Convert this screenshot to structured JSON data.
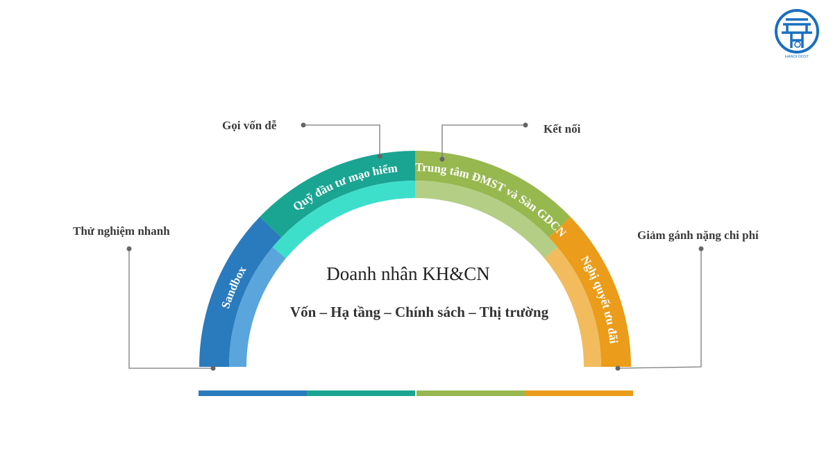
{
  "title": "Doanh nhân KH&CN",
  "subtitle": "Vốn – Hạ tầng – Chính sách – Thị trường",
  "segments": [
    {
      "label": "Sandbox",
      "dark": "#2a7bbd",
      "light": "#5aa5dc"
    },
    {
      "label": "Quỹ đầu tư mạo hiểm",
      "dark": "#1aa592",
      "light": "#3ddfcb"
    },
    {
      "label": "Trung tâm ĐMST và Sàn GDCN",
      "dark": "#97b84f",
      "light": "#b5ce86"
    },
    {
      "label": "Nghị quyết ưu đãi",
      "dark": "#ea9c1a",
      "light": "#f1bb5e"
    }
  ],
  "callouts": {
    "left": "Thử nghiệm nhanh",
    "top_left": "Gọi vốn dễ",
    "top_right": "Kết nối",
    "right": "Giảm gánh nặng chi phí"
  },
  "logo": {
    "text": "HANOI DOST",
    "color": "#1a6fc0"
  },
  "line_color": "#7a7a7a"
}
